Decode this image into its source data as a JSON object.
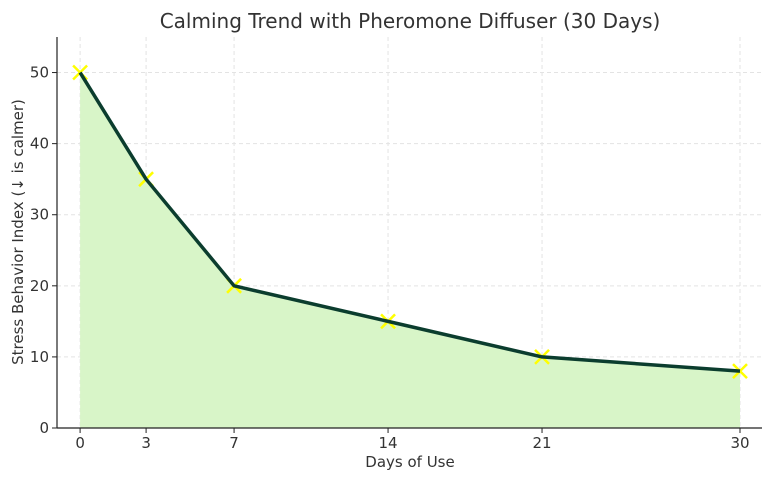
{
  "chart_data": {
    "type": "line",
    "title": "Calming Trend with Pheromone Diffuser (30 Days)",
    "xlabel": "Days of Use",
    "ylabel": "Stress Behavior Index (↓ is calmer)",
    "x": [
      0,
      3,
      7,
      14,
      21,
      30
    ],
    "series": [
      {
        "name": "Stress Behavior Index",
        "values": [
          50,
          35,
          20,
          15,
          10,
          8
        ]
      }
    ],
    "xticks": [
      "0",
      "3",
      "7",
      "14",
      "21",
      "30"
    ],
    "yticks": [
      "0",
      "10",
      "20",
      "30",
      "40",
      "50"
    ],
    "xlim": [
      -1.05,
      31
    ],
    "ylim": [
      0,
      55
    ],
    "grid": true,
    "fill_under": true,
    "marker": "x",
    "colors": {
      "line": "#0b3d2e",
      "fill": "#d8f5c8",
      "marker": "#ffff00",
      "grid": "#e3e3e3",
      "axis": "#222222"
    }
  }
}
